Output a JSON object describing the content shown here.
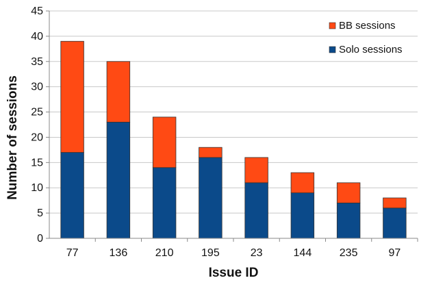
{
  "chart_data": {
    "type": "bar",
    "stacked": true,
    "title": "",
    "xlabel": "Issue ID",
    "ylabel": "Number of sessions",
    "categories": [
      "77",
      "136",
      "210",
      "195",
      "23",
      "144",
      "235",
      "97"
    ],
    "series": [
      {
        "name": "Solo sessions",
        "color": "#0b4a8a",
        "values": [
          17,
          23,
          14,
          16,
          11,
          9,
          7,
          6
        ]
      },
      {
        "name": "BB sessions",
        "color": "#ff4a14",
        "values": [
          22,
          12,
          10,
          2,
          5,
          4,
          4,
          2
        ]
      }
    ],
    "ylim": [
      0,
      45
    ],
    "yticks": [
      0,
      5,
      10,
      15,
      20,
      25,
      30,
      35,
      40,
      45
    ],
    "grid": true,
    "legend_position": "top-right",
    "legend_order": [
      "BB sessions",
      "Solo sessions"
    ]
  }
}
